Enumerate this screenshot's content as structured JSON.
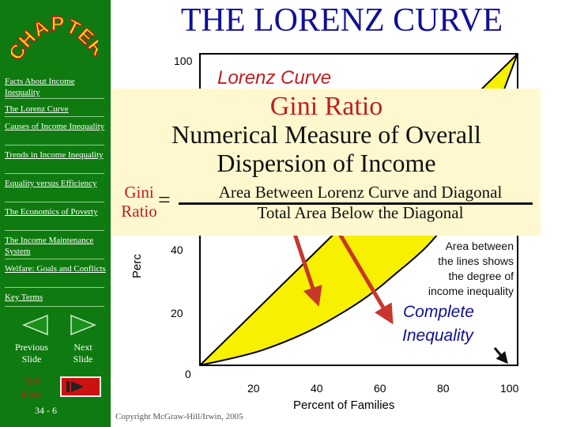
{
  "title": "THE LORENZ CURVE",
  "logo_text": "CHAPTER",
  "sidebar": {
    "items": [
      {
        "label": "Facts About Income Inequality"
      },
      {
        "label": "The Lorenz Curve"
      },
      {
        "label": "Causes of Income Inequality"
      },
      {
        "label": "Trends in Income Inequality"
      },
      {
        "label": "Equality versus Efficiency"
      },
      {
        "label": "The Economics of Poverty"
      },
      {
        "label": "The Income Maintenance System"
      },
      {
        "label": "Welfare: Goals and Conflicts"
      },
      {
        "label": "Key Terms"
      }
    ],
    "prev_label": "Previous Slide",
    "next_label": "Next Slide",
    "end_label": "End Show",
    "slide_number": "34 - 6"
  },
  "chart": {
    "y_ticks": [
      "100",
      "40",
      "20",
      "0"
    ],
    "x_ticks": [
      "20",
      "40",
      "60",
      "80",
      "100"
    ],
    "ylabel_fragment": "Perc",
    "xlabel": "Percent of Families",
    "curve_title": "Lorenz Curve",
    "area_note": [
      "Area between",
      "the lines shows",
      "the degree of",
      "income inequality"
    ],
    "complete_inequality": [
      "Complete",
      "Inequality"
    ],
    "copyright": "Copyright McGraw-Hill/Irwin, 2005"
  },
  "chart_data": {
    "type": "area",
    "xlabel": "Percent of Families",
    "x_ticks": [
      20,
      40,
      60,
      80,
      100
    ],
    "y_ticks": [
      20,
      40,
      100
    ],
    "xlim": [
      0,
      100
    ],
    "ylim": [
      0,
      100
    ],
    "diagonal": {
      "x": [
        0,
        100
      ],
      "y": [
        0,
        100
      ]
    },
    "lorenz_curve": {
      "x": [
        0,
        20,
        40,
        60,
        80,
        100
      ],
      "y": [
        0,
        5,
        14,
        28,
        50,
        100
      ]
    },
    "colors": {
      "area": "#f7f000",
      "curve": "#000000",
      "arrow": "#c8362c"
    }
  },
  "gini_box": {
    "title": "Gini Ratio",
    "desc": [
      "Numerical Measure of Overall",
      "Dispersion of Income"
    ],
    "lhs": [
      "Gini",
      "Ratio"
    ],
    "equals": "=",
    "numerator": "Area Between Lorenz Curve and Diagonal",
    "denominator": "Total Area Below the Diagonal"
  },
  "colors": {
    "sidebar": "#0f7a10",
    "title": "#0f0f9a",
    "red": "#c21d1d",
    "box": "#fff8cf"
  }
}
